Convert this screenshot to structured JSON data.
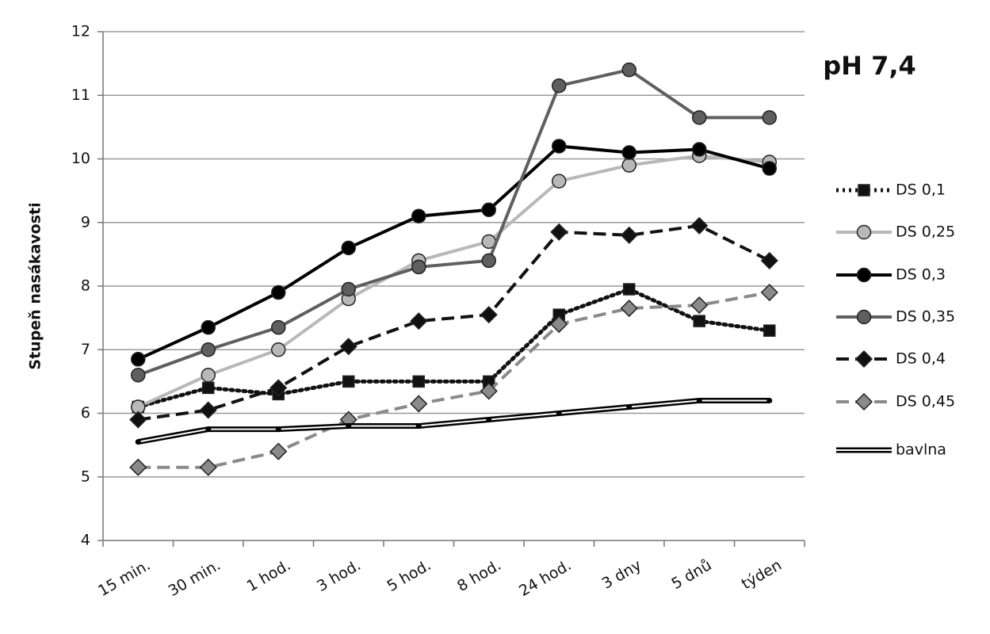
{
  "chart_data": {
    "type": "line",
    "title": "pH 7,4",
    "y_label": "Stupeň nasákavosti",
    "categories": [
      "15 min.",
      "30 min.",
      "1 hod.",
      "3 hod.",
      "5 hod.",
      "8 hod.",
      "24 hod.",
      "3 dny",
      "5 dnů",
      "týden"
    ],
    "ylim": [
      4,
      12
    ],
    "yticks": [
      4,
      5,
      6,
      7,
      8,
      9,
      10,
      11,
      12
    ],
    "grid": true,
    "legend": "right",
    "series": [
      {
        "name": "DS 0,1",
        "color": "#111111",
        "dash": "dotted",
        "marker": "square",
        "values": [
          6.1,
          6.4,
          6.3,
          6.5,
          6.5,
          6.5,
          7.55,
          7.95,
          7.45,
          7.3
        ]
      },
      {
        "name": "DS 0,25",
        "color": "#b8b8b8",
        "dash": "solid",
        "marker": "circle",
        "values": [
          6.1,
          6.6,
          7.0,
          7.8,
          8.4,
          8.7,
          9.65,
          9.9,
          10.05,
          9.95
        ]
      },
      {
        "name": "DS 0,3",
        "color": "#000000",
        "dash": "solid",
        "marker": "circle",
        "values": [
          6.85,
          7.35,
          7.9,
          8.6,
          9.1,
          9.2,
          10.2,
          10.1,
          10.15,
          9.85
        ]
      },
      {
        "name": "DS 0,35",
        "color": "#5f5f5f",
        "dash": "solid",
        "marker": "circle",
        "values": [
          6.6,
          7.0,
          7.35,
          7.95,
          8.3,
          8.4,
          11.15,
          11.4,
          10.65,
          10.65
        ]
      },
      {
        "name": "DS 0,4",
        "color": "#111111",
        "dash": "dashed",
        "marker": "diamond",
        "values": [
          5.9,
          6.05,
          6.4,
          7.05,
          7.45,
          7.55,
          8.85,
          8.8,
          8.95,
          8.4
        ]
      },
      {
        "name": "DS 0,45",
        "color": "#8a8a8a",
        "dash": "dashed",
        "marker": "diamond",
        "values": [
          5.15,
          5.15,
          5.4,
          5.9,
          6.15,
          6.35,
          7.4,
          7.65,
          7.7,
          7.9
        ]
      },
      {
        "name": "bavlna",
        "color": "#000000",
        "dash": "double",
        "marker": "none",
        "values": [
          5.55,
          5.75,
          5.75,
          5.8,
          5.8,
          5.9,
          6.0,
          6.1,
          6.2,
          6.2
        ]
      }
    ]
  }
}
